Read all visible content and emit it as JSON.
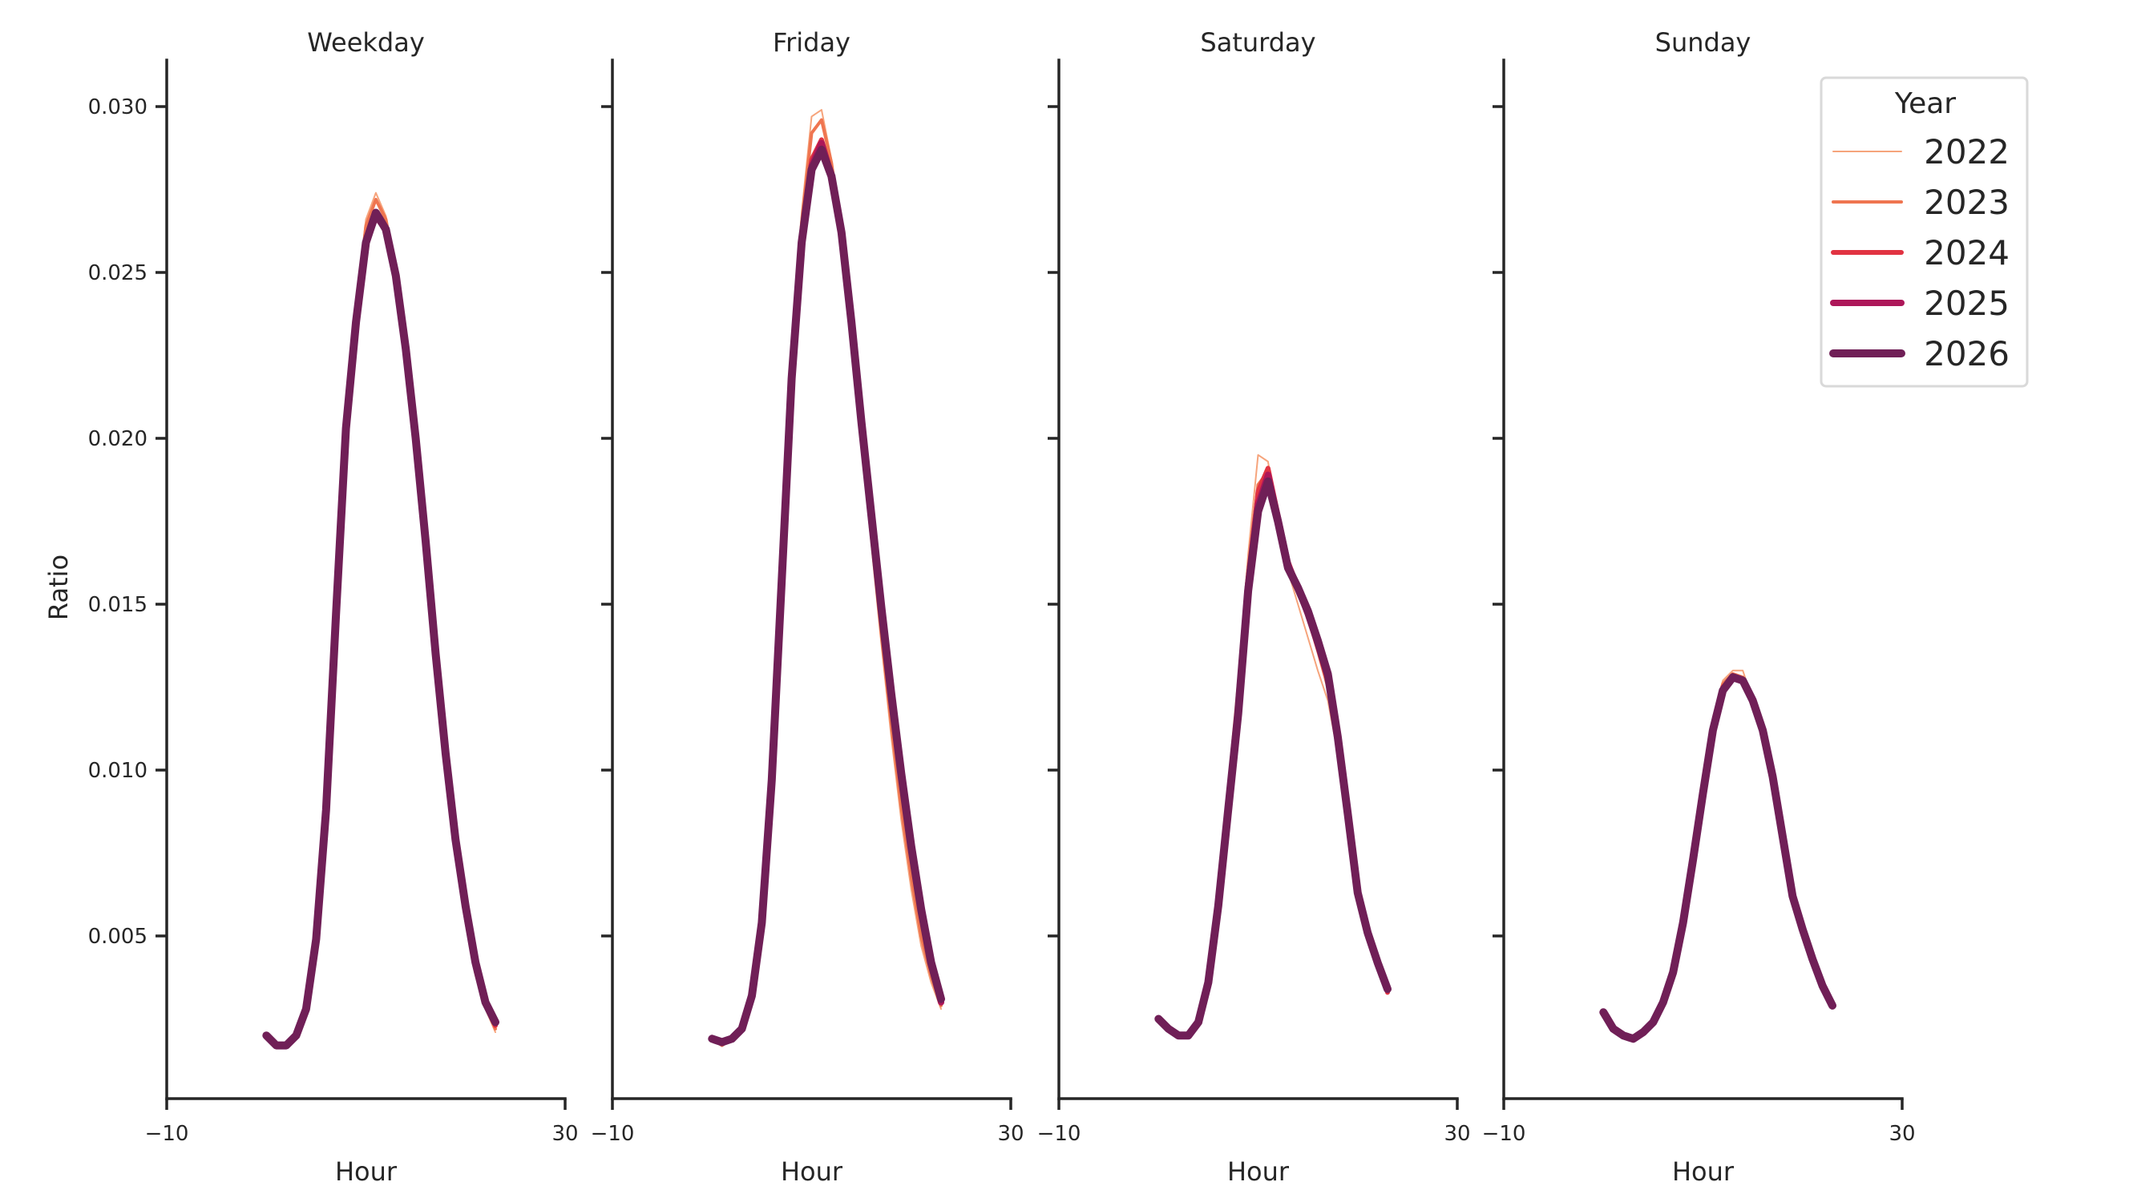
{
  "chart_data": {
    "type": "line",
    "facet_by": "Day type",
    "panels": [
      "Weekday",
      "Friday",
      "Saturday",
      "Sunday"
    ],
    "xlabel": "Hour",
    "ylabel": "Ratio",
    "xlim": [
      -10,
      30
    ],
    "ylim": [
      0.0001,
      0.0314
    ],
    "xticks": [
      -10,
      30
    ],
    "yticks": [
      0.005,
      0.01,
      0.015,
      0.02,
      0.025,
      0.03
    ],
    "ytick_labels": [
      "0.005",
      "0.010",
      "0.015",
      "0.020",
      "0.025",
      "0.030"
    ],
    "grid": false,
    "legend": {
      "title": "Year",
      "position": "upper right",
      "entries": [
        {
          "label": "2022",
          "color": "#f6a47c",
          "width": 2
        },
        {
          "label": "2023",
          "color": "#ef7550",
          "width": 4
        },
        {
          "label": "2024",
          "color": "#e13342",
          "width": 6
        },
        {
          "label": "2025",
          "color": "#ad1759",
          "width": 8
        },
        {
          "label": "2026",
          "color": "#701f57",
          "width": 10
        }
      ]
    },
    "x": [
      0,
      1,
      2,
      3,
      4,
      5,
      6,
      7,
      8,
      9,
      10,
      11,
      12,
      13,
      14,
      15,
      16,
      17,
      18,
      19,
      20,
      21,
      22,
      23
    ],
    "series": {
      "Weekday": {
        "2022": [
          0.0019,
          0.0017,
          0.0017,
          0.002,
          0.0029,
          0.005,
          0.009,
          0.0152,
          0.0209,
          0.024,
          0.0266,
          0.0274,
          0.0267,
          0.025,
          0.0226,
          0.0197,
          0.0165,
          0.013,
          0.0099,
          0.0073,
          0.0054,
          0.0038,
          0.0028,
          0.0021
        ],
        "2023": [
          0.0019,
          0.0017,
          0.0017,
          0.002,
          0.0029,
          0.005,
          0.0089,
          0.015,
          0.0207,
          0.0238,
          0.0264,
          0.0272,
          0.0266,
          0.025,
          0.0226,
          0.0198,
          0.0166,
          0.0131,
          0.01,
          0.0075,
          0.0055,
          0.0039,
          0.0029,
          0.0022
        ],
        "2024": [
          0.002,
          0.0017,
          0.0017,
          0.002,
          0.0028,
          0.0049,
          0.0088,
          0.0148,
          0.0204,
          0.0236,
          0.026,
          0.0268,
          0.0262,
          0.0249,
          0.0227,
          0.0199,
          0.0168,
          0.0133,
          0.0103,
          0.0077,
          0.0058,
          0.0041,
          0.003,
          0.0023
        ],
        "2025": [
          0.002,
          0.0017,
          0.0017,
          0.002,
          0.0028,
          0.0049,
          0.0088,
          0.0147,
          0.0203,
          0.0235,
          0.0259,
          0.0267,
          0.0263,
          0.0249,
          0.0227,
          0.02,
          0.0169,
          0.0135,
          0.0105,
          0.0079,
          0.0059,
          0.0042,
          0.003,
          0.0024
        ],
        "2026": [
          0.002,
          0.0017,
          0.0017,
          0.002,
          0.0028,
          0.0049,
          0.0088,
          0.0147,
          0.0203,
          0.0235,
          0.0259,
          0.0268,
          0.0263,
          0.0249,
          0.0227,
          0.02,
          0.0169,
          0.0135,
          0.0105,
          0.0079,
          0.0059,
          0.0042,
          0.003,
          0.0024
        ]
      },
      "Friday": {
        "2022": [
          0.0019,
          0.0017,
          0.0019,
          0.0022,
          0.0032,
          0.0054,
          0.0098,
          0.016,
          0.0224,
          0.0268,
          0.0297,
          0.0299,
          0.0284,
          0.0262,
          0.023,
          0.0198,
          0.0168,
          0.0138,
          0.011,
          0.0085,
          0.0064,
          0.0047,
          0.0036,
          0.0028
        ],
        "2023": [
          0.0019,
          0.0017,
          0.0019,
          0.0022,
          0.0032,
          0.0054,
          0.0098,
          0.0159,
          0.0222,
          0.0265,
          0.0292,
          0.0296,
          0.0283,
          0.0262,
          0.0232,
          0.02,
          0.0171,
          0.0141,
          0.0114,
          0.0089,
          0.0068,
          0.005,
          0.0038,
          0.0029
        ],
        "2024": [
          0.0019,
          0.0018,
          0.0019,
          0.0022,
          0.0032,
          0.0054,
          0.0097,
          0.0158,
          0.0219,
          0.0261,
          0.0284,
          0.029,
          0.028,
          0.0262,
          0.0234,
          0.0203,
          0.0175,
          0.0147,
          0.012,
          0.0096,
          0.0075,
          0.0056,
          0.0041,
          0.003
        ],
        "2025": [
          0.0019,
          0.0018,
          0.0019,
          0.0022,
          0.0032,
          0.0054,
          0.0097,
          0.0157,
          0.0218,
          0.0259,
          0.0282,
          0.0289,
          0.0279,
          0.0262,
          0.0235,
          0.0205,
          0.0177,
          0.0149,
          0.0123,
          0.0099,
          0.0077,
          0.0058,
          0.0042,
          0.003
        ],
        "2026": [
          0.0019,
          0.0018,
          0.0019,
          0.0022,
          0.0032,
          0.0054,
          0.0097,
          0.0157,
          0.0218,
          0.0259,
          0.0281,
          0.0287,
          0.0279,
          0.0262,
          0.0235,
          0.0205,
          0.0177,
          0.0149,
          0.0123,
          0.0099,
          0.0077,
          0.0058,
          0.0042,
          0.0031
        ]
      },
      "Saturday": {
        "2022": [
          0.0025,
          0.0022,
          0.002,
          0.002,
          0.0024,
          0.0037,
          0.0062,
          0.0096,
          0.0128,
          0.0165,
          0.0195,
          0.0193,
          0.0175,
          0.016,
          0.015,
          0.014,
          0.013,
          0.0121,
          0.0105,
          0.0085,
          0.0063,
          0.0051,
          0.0042,
          0.0033
        ],
        "2023": [
          0.0025,
          0.0022,
          0.002,
          0.002,
          0.0024,
          0.0036,
          0.006,
          0.0093,
          0.0124,
          0.016,
          0.0186,
          0.019,
          0.0176,
          0.0162,
          0.0154,
          0.0146,
          0.0136,
          0.0125,
          0.0107,
          0.0086,
          0.0063,
          0.0051,
          0.0042,
          0.0033
        ],
        "2024": [
          0.0025,
          0.0022,
          0.002,
          0.002,
          0.0024,
          0.0036,
          0.0059,
          0.0091,
          0.0121,
          0.0158,
          0.0184,
          0.0191,
          0.0177,
          0.0163,
          0.0155,
          0.0147,
          0.0137,
          0.0127,
          0.0108,
          0.0087,
          0.0063,
          0.0051,
          0.0042,
          0.0033
        ],
        "2025": [
          0.0025,
          0.0022,
          0.002,
          0.002,
          0.0024,
          0.0036,
          0.0059,
          0.0089,
          0.0119,
          0.0156,
          0.018,
          0.0189,
          0.0176,
          0.0162,
          0.0155,
          0.0147,
          0.0138,
          0.0128,
          0.0109,
          0.0087,
          0.0063,
          0.0051,
          0.0042,
          0.0034
        ],
        "2026": [
          0.0025,
          0.0022,
          0.002,
          0.002,
          0.0024,
          0.0036,
          0.0059,
          0.0088,
          0.0117,
          0.0154,
          0.0178,
          0.0187,
          0.0175,
          0.0161,
          0.0155,
          0.0148,
          0.0139,
          0.0129,
          0.011,
          0.0087,
          0.0063,
          0.0051,
          0.0042,
          0.0034
        ]
      },
      "Sunday": {
        "2022": [
          0.0027,
          0.0022,
          0.002,
          0.0019,
          0.0021,
          0.0024,
          0.003,
          0.0039,
          0.0055,
          0.0076,
          0.0098,
          0.0116,
          0.0127,
          0.013,
          0.013,
          0.0121,
          0.0112,
          0.0097,
          0.0079,
          0.0061,
          0.0051,
          0.0042,
          0.0034,
          0.0029
        ],
        "2023": [
          0.0027,
          0.0022,
          0.002,
          0.0019,
          0.0021,
          0.0024,
          0.003,
          0.0039,
          0.0054,
          0.0075,
          0.0096,
          0.0114,
          0.0126,
          0.0129,
          0.0128,
          0.0121,
          0.0112,
          0.0098,
          0.008,
          0.0062,
          0.0052,
          0.0043,
          0.0035,
          0.0029
        ],
        "2024": [
          0.0027,
          0.0022,
          0.002,
          0.0019,
          0.0021,
          0.0024,
          0.003,
          0.0039,
          0.0054,
          0.0074,
          0.0094,
          0.0113,
          0.0125,
          0.0128,
          0.0127,
          0.0121,
          0.0112,
          0.0098,
          0.008,
          0.0062,
          0.0052,
          0.0043,
          0.0035,
          0.0029
        ],
        "2025": [
          0.0027,
          0.0022,
          0.002,
          0.0019,
          0.0021,
          0.0024,
          0.003,
          0.0039,
          0.0054,
          0.0073,
          0.0093,
          0.0112,
          0.0124,
          0.0128,
          0.0127,
          0.0121,
          0.0112,
          0.0098,
          0.008,
          0.0062,
          0.0052,
          0.0043,
          0.0035,
          0.0029
        ],
        "2026": [
          0.0027,
          0.0022,
          0.002,
          0.0019,
          0.0021,
          0.0024,
          0.003,
          0.0039,
          0.0054,
          0.0073,
          0.0093,
          0.0112,
          0.0124,
          0.0128,
          0.0127,
          0.0121,
          0.0112,
          0.0098,
          0.008,
          0.0062,
          0.0052,
          0.0043,
          0.0035,
          0.0029
        ]
      }
    }
  },
  "labels": {
    "panel_titles": [
      "Weekday",
      "Friday",
      "Saturday",
      "Sunday"
    ],
    "xlabel": "Hour",
    "ylabel": "Ratio",
    "xtick_min": "−10",
    "xtick_max": "30",
    "legend_title": "Year"
  }
}
